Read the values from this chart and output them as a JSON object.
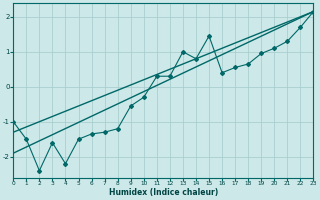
{
  "xlabel": "Humidex (Indice chaleur)",
  "background_color": "#cce8e8",
  "grid_color": "#aacece",
  "line_color": "#006868",
  "xlim": [
    0,
    23
  ],
  "ylim": [
    -2.6,
    2.4
  ],
  "xticks": [
    0,
    1,
    2,
    3,
    4,
    5,
    6,
    7,
    8,
    9,
    10,
    11,
    12,
    13,
    14,
    15,
    16,
    17,
    18,
    19,
    20,
    21,
    22,
    23
  ],
  "yticks": [
    -2,
    -1,
    0,
    1,
    2
  ],
  "series1_x": [
    0,
    1,
    2,
    3,
    4,
    5,
    6,
    7,
    8,
    9,
    10,
    11,
    12,
    13,
    14,
    15,
    16,
    17,
    18,
    19,
    20,
    21,
    22,
    23
  ],
  "series1_y": [
    -1.0,
    -1.5,
    -2.4,
    -1.6,
    -2.2,
    -1.5,
    -1.35,
    -1.3,
    -1.2,
    -0.55,
    -0.3,
    0.3,
    0.3,
    1.0,
    0.8,
    1.45,
    0.4,
    0.55,
    0.65,
    0.95,
    1.1,
    1.3,
    1.7,
    2.15
  ],
  "line2_x0": 0,
  "line2_y0": -1.9,
  "line2_x1": 23,
  "line2_y1": 2.15,
  "line3_x0": 0,
  "line3_y0": -1.3,
  "line3_x1": 23,
  "line3_y1": 2.15
}
